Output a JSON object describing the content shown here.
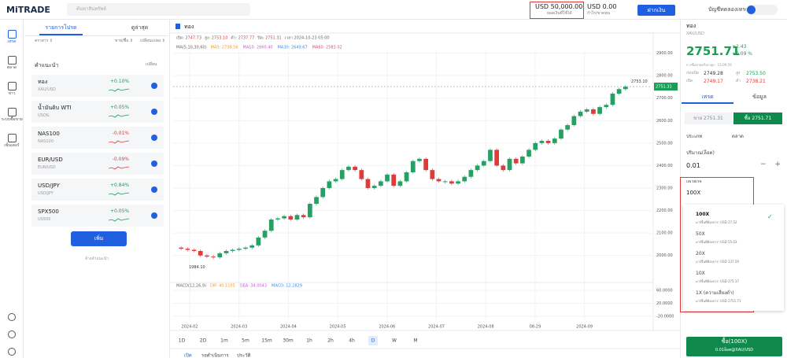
{
  "topbar": {
    "logo": "MiTRADE",
    "search": "ค้นหาสินทรัพย์",
    "balance": "USD 50,000.00",
    "balance_label": "ยอดเงินที่ใช้ได้",
    "pnl": "USD 0.00",
    "pnl_label": "กำไร/ขาดทุน",
    "deposit": "ฝากเงิน",
    "account": "บัญชีทดลองเทรด"
  },
  "sidebar": [
    "เทรด",
    "ตลาด",
    "ข่าว",
    "ระบบซื้อขาย",
    "เซ็นเตอร์"
  ],
  "watchlist": {
    "tabs": [
      "รายการโปรด",
      "ดูล่าสุด"
    ],
    "columns": [
      "ตราสาร ⇕",
      "ขาย/ซื้อ ⇕",
      "เปลี่ยนแปลง ⇕"
    ],
    "section": "คำแนะนำ",
    "refresh": "เปลี่ยน",
    "items": [
      {
        "name": "ทอง",
        "code": "XAU/USD",
        "change": "+0.10%",
        "color": "#1a9e55"
      },
      {
        "name": "น้ำมันดิบ WTI",
        "code": "USOIL",
        "change": "+0.05%",
        "color": "#1a9e55"
      },
      {
        "name": "NAS100",
        "code": "NAS100",
        "change": "-0.01%",
        "color": "#e03b3b"
      },
      {
        "name": "EUR/USD",
        "code": "EUR/USD",
        "change": "-0.09%",
        "color": "#e03b3b"
      },
      {
        "name": "USD/JPY",
        "code": "USD/JPY",
        "change": "+0.84%",
        "color": "#1a9e55"
      },
      {
        "name": "SPX500",
        "code": "US500",
        "change": "+0.05%",
        "color": "#1a9e55"
      }
    ],
    "add": "เพิ่ม",
    "clear": "ล้างคำแนะนำ"
  },
  "chart": {
    "title": "ทอง",
    "ohlc": [
      {
        "label": "เปิด:",
        "value": "2747.73"
      },
      {
        "label": "สูง:",
        "value": "2753.10"
      },
      {
        "label": "ต่ำ:",
        "value": "2737.77"
      },
      {
        "label": "ปิด:",
        "value": "2751.31"
      },
      {
        "label": "เวลา",
        "value": "2024-10-23 05:00"
      }
    ],
    "ma_title": "MA(5,10,30,60)",
    "ma": [
      {
        "text": "MA5: 2738.56",
        "color": "#f39c12"
      },
      {
        "text": "MA10: 2660.40",
        "color": "#c45bd6"
      },
      {
        "text": "MA30: 2649.67",
        "color": "#3b8fe0"
      },
      {
        "text": "MA60: 2583.02",
        "color": "#e0506a"
      }
    ],
    "ylim": [
      1880,
      2930
    ],
    "yticks": [
      {
        "value": 2000,
        "label": "2000.00"
      },
      {
        "value": 2100,
        "label": "2100.00"
      },
      {
        "value": 2200,
        "label": "2200.00"
      },
      {
        "value": 2300,
        "label": "2300.00"
      },
      {
        "value": 2400,
        "label": "2400.00"
      },
      {
        "value": 2500,
        "label": "2500.00"
      },
      {
        "value": 2600,
        "label": "2600.00"
      },
      {
        "value": 2700,
        "label": "2700.00"
      },
      {
        "value": 2800,
        "label": "2800.00"
      },
      {
        "value": 2900,
        "label": "2900.00"
      }
    ],
    "high_tag": {
      "value": 2753.1,
      "label": "2753.10"
    },
    "last_tag": {
      "value": 2751.31,
      "label": "2751.31"
    },
    "low_tag": {
      "value": 1984.1,
      "label": "1984.10"
    },
    "up_color": "#26a065",
    "down_color": "#e03b3b",
    "closes": [
      2035,
      2030,
      2025,
      2020,
      2000,
      1995,
      1992,
      2010,
      2020,
      2025,
      2030,
      2035,
      2045,
      2080,
      2110,
      2160,
      2165,
      2175,
      2160,
      2180,
      2170,
      2230,
      2260,
      2300,
      2330,
      2340,
      2380,
      2395,
      2380,
      2340,
      2300,
      2310,
      2330,
      2360,
      2310,
      2330,
      2370,
      2420,
      2430,
      2380,
      2340,
      2330,
      2330,
      2320,
      2330,
      2350,
      2380,
      2400,
      2420,
      2470,
      2400,
      2380,
      2430,
      2410,
      2440,
      2470,
      2500,
      2510,
      2500,
      2520,
      2560,
      2580,
      2620,
      2640,
      2650,
      2630,
      2660,
      2670,
      2720,
      2740,
      2751.31
    ],
    "macd_title": "MACD(12,26,9)",
    "macd_items": [
      {
        "text": "DIF: 40.1105",
        "color": "#f39c12"
      },
      {
        "text": "DEA: 34.0043",
        "color": "#c45bd6"
      },
      {
        "text": "MACD: 12.2829",
        "color": "#3b8fe0"
      }
    ],
    "macd_ylim": [
      -30,
      70
    ],
    "macd_ticks": [
      {
        "value": 60,
        "label": "60.0000"
      },
      {
        "value": 20,
        "label": "20.0000"
      },
      {
        "value": -20,
        "label": "-20.0000"
      }
    ],
    "xlabels": [
      "2024-02",
      "2024-03",
      "2024-04",
      "2024-05",
      "2024-06",
      "2024-07",
      "2024-08",
      "08-29",
      "2024-09"
    ],
    "timeframes": [
      "1D",
      "2D",
      "1m",
      "5m",
      "15m",
      "30m",
      "1h",
      "2h",
      "4h",
      "D",
      "W",
      "M"
    ],
    "bottom_tabs": [
      "เปิด",
      "รอดำเนินการ",
      "ประวัติ"
    ]
  },
  "trade": {
    "name": "ทอง",
    "code": "XAU/USD",
    "price": "2751.71",
    "change": "+2.43",
    "change_pct": "+0.09 %",
    "last_trade": "การซื้อขายครั้งล่าสุด : 15:09:59",
    "stats": [
      {
        "label": "ก่อนปิด",
        "value": "2749.28",
        "color": "#333"
      },
      {
        "label": "สูง",
        "value": "2753.50",
        "color": "#1a9e55"
      },
      {
        "label": "เปิด",
        "value": "2749.17",
        "color": "#e03b3b"
      },
      {
        "label": "ต่ำ",
        "value": "2738.21",
        "color": "#e03b3b"
      }
    ],
    "tabs": [
      "เทรด",
      "ข้อมูล"
    ],
    "sell": "ขาย 2751.31",
    "buy": "ซื้อ 2751.71",
    "type_label": "ประเภท",
    "type_value": "ตลาด",
    "qty_label": "ปริมาณ(ล็อต)",
    "qty": "0.01",
    "leverage_label": "เลเวอเรจ",
    "leverage": "100X",
    "options": [
      {
        "name": "100X",
        "margin": "มาร์จิ้นที่ต้องการ:  USD 27.52"
      },
      {
        "name": "50X",
        "margin": "มาร์จิ้นที่ต้องการ:  USD 55.03"
      },
      {
        "name": "20X",
        "margin": "มาร์จิ้นที่ต้องการ:  USD 137.59"
      },
      {
        "name": "10X",
        "margin": "มาร์จิ้นที่ต้องการ:  USD 275.17"
      },
      {
        "name": "1X (ความเสี่ยงต่ำ)",
        "margin": "มาร์จิ้นที่ต้องการ:  USD 2751.71"
      }
    ],
    "buy_button": "ซื้อ(100X)",
    "buy_sub": "0.01ล็อต@XAU/USD"
  }
}
